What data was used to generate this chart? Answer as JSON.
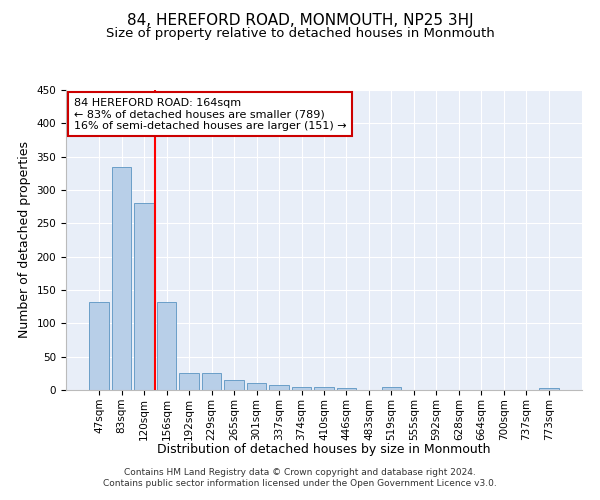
{
  "title": "84, HEREFORD ROAD, MONMOUTH, NP25 3HJ",
  "subtitle": "Size of property relative to detached houses in Monmouth",
  "xlabel": "Distribution of detached houses by size in Monmouth",
  "ylabel": "Number of detached properties",
  "categories": [
    "47sqm",
    "83sqm",
    "120sqm",
    "156sqm",
    "192sqm",
    "229sqm",
    "265sqm",
    "301sqm",
    "337sqm",
    "374sqm",
    "410sqm",
    "446sqm",
    "483sqm",
    "519sqm",
    "555sqm",
    "592sqm",
    "628sqm",
    "664sqm",
    "700sqm",
    "737sqm",
    "773sqm"
  ],
  "values": [
    132,
    335,
    280,
    132,
    26,
    26,
    15,
    11,
    7,
    5,
    5,
    3,
    0,
    4,
    0,
    0,
    0,
    0,
    0,
    0,
    3
  ],
  "bar_color": "#b8cfe8",
  "bar_edge_color": "#6a9fc8",
  "red_line_index": 3,
  "ylim": [
    0,
    450
  ],
  "yticks": [
    0,
    50,
    100,
    150,
    200,
    250,
    300,
    350,
    400,
    450
  ],
  "annotation_line1": "84 HEREFORD ROAD: 164sqm",
  "annotation_line2": "← 83% of detached houses are smaller (789)",
  "annotation_line3": "16% of semi-detached houses are larger (151) →",
  "annotation_box_color": "#ffffff",
  "annotation_box_edge": "#cc0000",
  "footer1": "Contains HM Land Registry data © Crown copyright and database right 2024.",
  "footer2": "Contains public sector information licensed under the Open Government Licence v3.0.",
  "background_color": "#e8eef8",
  "grid_color": "#ffffff",
  "title_fontsize": 11,
  "subtitle_fontsize": 9.5,
  "axis_label_fontsize": 9,
  "tick_fontsize": 7.5,
  "annotation_fontsize": 8,
  "footer_fontsize": 6.5
}
